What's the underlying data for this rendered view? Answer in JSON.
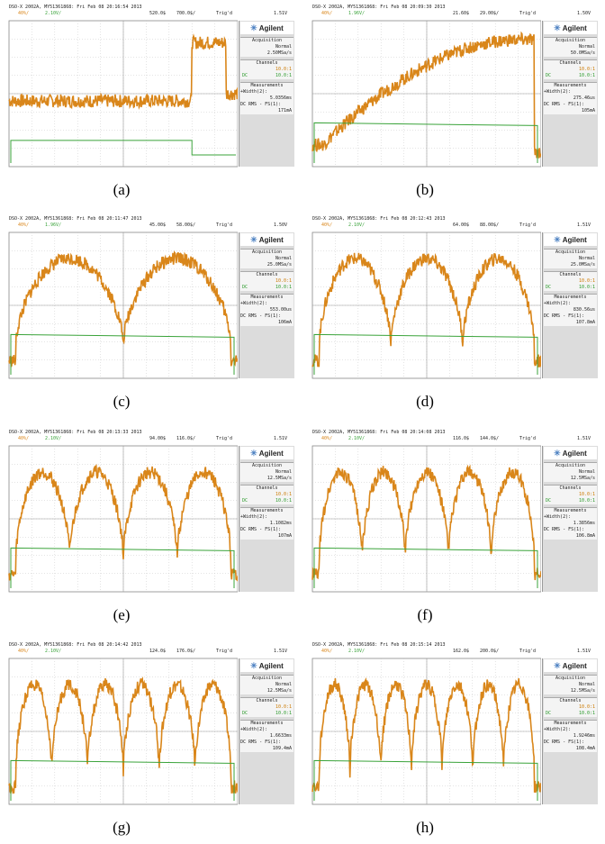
{
  "panels": [
    {
      "caption": "(a)",
      "header": "DSO-X 2002A, MY51361868: Fri Feb 08 20:16:54 2013",
      "scale1": "40%/",
      "scale2": "2.10V/",
      "delay": "520.0$",
      "timebase": "700.0$/",
      "trig": "Trig'd",
      "trigval": "1.51V",
      "brand": "Agilent",
      "acq_title": "Acquisition",
      "acq_mode": "Normal",
      "acq_rate": "2.50MSa/s",
      "ch_title": "Channels",
      "ch1_val": "10.0:1",
      "ch2_val": "10.0:1",
      "ch_coupling": "DC",
      "meas_title": "Measurements",
      "meas_width_label": "+Width(2):",
      "meas_width": "5.0356ms",
      "meas_rms_label": "DC RMS - FS(1):",
      "meas_rms": "171mA"
    },
    {
      "caption": "(b)",
      "header": "DSO-X 2002A, MY51361868: Fri Feb 08 20:09:30 2013",
      "scale1": "40%/",
      "scale2": "1.96V/",
      "delay": "21.60$",
      "timebase": "29.00$/",
      "trig": "Trig'd",
      "trigval": "1.50V",
      "brand": "Agilent",
      "acq_title": "Acquisition",
      "acq_mode": "Normal",
      "acq_rate": "50.0MSa/s",
      "ch_title": "Channels",
      "ch1_val": "10.0:1",
      "ch2_val": "10.0:1",
      "ch_coupling": "DC",
      "meas_title": "Measurements",
      "meas_width_label": "+Width(2):",
      "meas_width": "275.46us",
      "meas_rms_label": "DC RMS - FS(1):",
      "meas_rms": "105mA"
    },
    {
      "caption": "(c)",
      "header": "DSO-X 2002A, MY51361868: Fri Feb 08 20:11:47 2013",
      "scale1": "40%/",
      "scale2": "1.96V/",
      "delay": "45.00$",
      "timebase": "58.00$/",
      "trig": "Trig'd",
      "trigval": "1.50V",
      "brand": "Agilent",
      "acq_title": "Acquisition",
      "acq_mode": "Normal",
      "acq_rate": "25.0MSa/s",
      "ch_title": "Channels",
      "ch1_val": "10.0:1",
      "ch2_val": "10.0:1",
      "ch_coupling": "DC",
      "meas_title": "Measurements",
      "meas_width_label": "+Width(2):",
      "meas_width": "553.00us",
      "meas_rms_label": "DC RMS - FS(1):",
      "meas_rms": "106mA"
    },
    {
      "caption": "(d)",
      "header": "DSO-X 2002A, MY51361868: Fri Feb 08 20:12:43 2013",
      "scale1": "40%/",
      "scale2": "2.10V/",
      "delay": "64.00$",
      "timebase": "88.00$/",
      "trig": "Trig'd",
      "trigval": "1.51V",
      "brand": "Agilent",
      "acq_title": "Acquisition",
      "acq_mode": "Normal",
      "acq_rate": "25.0MSa/s",
      "ch_title": "Channels",
      "ch1_val": "10.0:1",
      "ch2_val": "10.0:1",
      "ch_coupling": "DC",
      "meas_title": "Measurements",
      "meas_width_label": "+Width(2):",
      "meas_width": "830.56us",
      "meas_rms_label": "DC RMS - FS(1):",
      "meas_rms": "107.8mA"
    },
    {
      "caption": "(e)",
      "header": "DSO-X 2002A, MY51361868: Fri Feb 08 20:13:33 2013",
      "scale1": "40%/",
      "scale2": "2.10V/",
      "delay": "94.00$",
      "timebase": "116.0$/",
      "trig": "Trig'd",
      "trigval": "1.51V",
      "brand": "Agilent",
      "acq_title": "Acquisition",
      "acq_mode": "Normal",
      "acq_rate": "12.5MSa/s",
      "ch_title": "Channels",
      "ch1_val": "10.0:1",
      "ch2_val": "10.0:1",
      "ch_coupling": "DC",
      "meas_title": "Measurements",
      "meas_width_label": "+Width(2):",
      "meas_width": "1.1082ms",
      "meas_rms_label": "DC RMS - FS(1):",
      "meas_rms": "107mA"
    },
    {
      "caption": "(f)",
      "header": "DSO-X 2002A, MY51361868: Fri Feb 08 20:14:08 2013",
      "scale1": "40%/",
      "scale2": "2.10V/",
      "delay": "116.0$",
      "timebase": "144.0$/",
      "trig": "Trig'd",
      "trigval": "1.51V",
      "brand": "Agilent",
      "acq_title": "Acquisition",
      "acq_mode": "Normal",
      "acq_rate": "12.5MSa/s",
      "ch_title": "Channels",
      "ch1_val": "10.0:1",
      "ch2_val": "10.0:1",
      "ch_coupling": "DC",
      "meas_title": "Measurements",
      "meas_width_label": "+Width(2):",
      "meas_width": "1.3856ms",
      "meas_rms_label": "DC RMS - FS(1):",
      "meas_rms": "106.8mA"
    },
    {
      "caption": "(g)",
      "header": "DSO-X 2002A, MY51361868: Fri Feb 08 20:14:42 2013",
      "scale1": "40%/",
      "scale2": "2.10V/",
      "delay": "124.0$",
      "timebase": "176.0$/",
      "trig": "Trig'd",
      "trigval": "1.51V",
      "brand": "Agilent",
      "acq_title": "Acquisition",
      "acq_mode": "Normal",
      "acq_rate": "12.5MSa/s",
      "ch_title": "Channels",
      "ch1_val": "10.0:1",
      "ch2_val": "10.0:1",
      "ch_coupling": "DC",
      "meas_title": "Measurements",
      "meas_width_label": "+Width(2):",
      "meas_width": "1.6633ms",
      "meas_rms_label": "DC RMS - FS(1):",
      "meas_rms": "109.4mA"
    },
    {
      "caption": "(h)",
      "header": "DSO-X 2002A, MY51361868: Fri Feb 08 20:15:14 2013",
      "scale1": "40%/",
      "scale2": "2.10V/",
      "delay": "162.0$",
      "timebase": "200.0$/",
      "trig": "Trig'd",
      "trigval": "1.51V",
      "brand": "Agilent",
      "acq_title": "Acquisition",
      "acq_mode": "Normal",
      "acq_rate": "12.5MSa/s",
      "ch_title": "Channels",
      "ch1_val": "10.0:1",
      "ch2_val": "10.0:1",
      "ch_coupling": "DC",
      "meas_title": "Measurements",
      "meas_width_label": "+Width(2):",
      "meas_width": "1.9246ms",
      "meas_rms_label": "DC RMS - FS(1):",
      "meas_rms": "108.4mA"
    }
  ],
  "chart_data": [
    {
      "type": "line",
      "panel": "(a)",
      "ch1_shape": "step",
      "ch1_low": 0.45,
      "ch1_high": 0.85,
      "ch1_step_at": 0.8,
      "ch2_level": 0.18,
      "ch2_drop_at": 0.8,
      "bumps": 0
    },
    {
      "type": "line",
      "panel": "(b)",
      "ch1_shape": "arch",
      "bumps": 1,
      "ch2_level": 0.3
    },
    {
      "type": "line",
      "panel": "(c)",
      "ch1_shape": "bumps",
      "bumps": 2,
      "ch2_level": 0.3
    },
    {
      "type": "line",
      "panel": "(d)",
      "ch1_shape": "bumps",
      "bumps": 3,
      "ch2_level": 0.3
    },
    {
      "type": "line",
      "panel": "(e)",
      "ch1_shape": "bumps",
      "bumps": 4,
      "ch2_level": 0.3
    },
    {
      "type": "line",
      "panel": "(f)",
      "ch1_shape": "bumps",
      "bumps": 5,
      "ch2_level": 0.3
    },
    {
      "type": "line",
      "panel": "(g)",
      "ch1_shape": "bumps",
      "bumps": 6,
      "ch2_level": 0.3
    },
    {
      "type": "line",
      "panel": "(h)",
      "ch1_shape": "bumps",
      "bumps": 7,
      "ch2_level": 0.3
    }
  ],
  "colors": {
    "ch1": "#d9861a",
    "ch2": "#3aa33a",
    "grid": "#c8c8c8",
    "screen": "#ffffff"
  }
}
